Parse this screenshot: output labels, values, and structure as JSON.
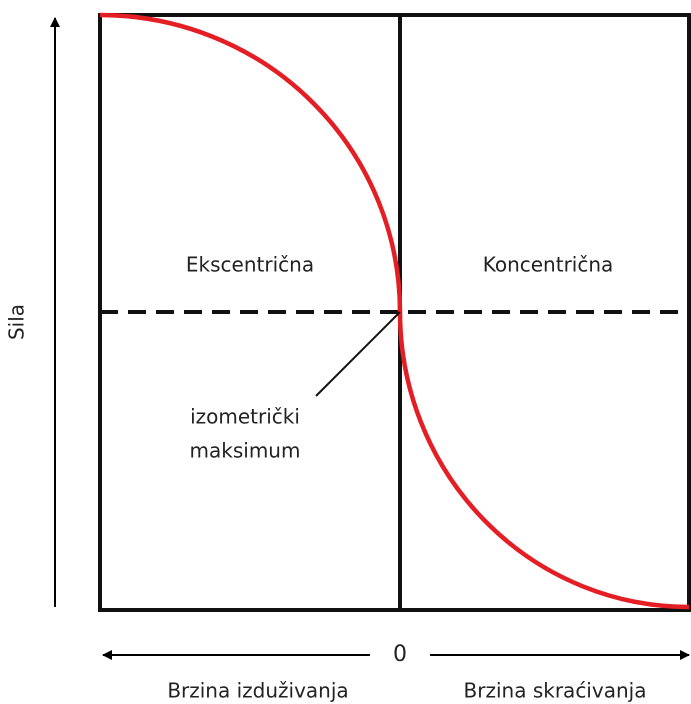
{
  "y_axis_label": "Sila",
  "regions": {
    "left": "Ekscentrična",
    "right": "Koncentrična"
  },
  "annotation": {
    "line1": "izometrički",
    "line2": "maksimum"
  },
  "x_axis": {
    "origin": "0",
    "left_label": "Brzina izduživanja",
    "right_label": "Brzina skraćivanja"
  }
}
